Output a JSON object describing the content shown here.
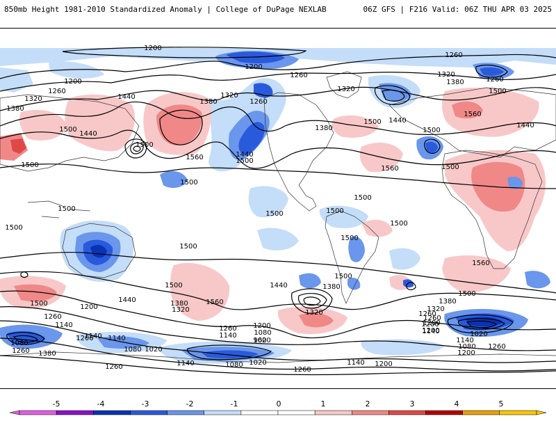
{
  "header": {
    "left_title": "850mb Height 1981-2010 Standardized Anomaly | College of DuPage NEXLAB",
    "right_title": "06Z GFS | F216 Valid: 06Z THU APR 03 2025"
  },
  "contour_labels": [
    {
      "text": "1200"
    },
    {
      "text": "1200"
    },
    {
      "text": "1260"
    },
    {
      "text": "1200"
    },
    {
      "text": "1260"
    },
    {
      "text": "1320"
    },
    {
      "text": "1380"
    },
    {
      "text": "1440"
    },
    {
      "text": "1320"
    },
    {
      "text": "1380"
    },
    {
      "text": "1260"
    },
    {
      "text": "1320"
    },
    {
      "text": "1380"
    },
    {
      "text": "1260"
    },
    {
      "text": "1320"
    },
    {
      "text": "1500"
    },
    {
      "text": "1260"
    },
    {
      "text": "1500"
    },
    {
      "text": "1440"
    },
    {
      "text": "1560"
    },
    {
      "text": "1500"
    },
    {
      "text": "1440"
    },
    {
      "text": "1380"
    },
    {
      "text": "1500"
    },
    {
      "text": "1560"
    },
    {
      "text": "1500"
    },
    {
      "text": "1500"
    },
    {
      "text": "1440"
    },
    {
      "text": "1500"
    },
    {
      "text": "1560"
    },
    {
      "text": "1500"
    },
    {
      "text": "1440"
    },
    {
      "text": "1500"
    },
    {
      "text": "1500"
    },
    {
      "text": "1500"
    },
    {
      "text": "1500"
    },
    {
      "text": "1500"
    },
    {
      "text": "1500"
    },
    {
      "text": "1500"
    },
    {
      "text": "1500"
    },
    {
      "text": "1500"
    },
    {
      "text": "1500"
    },
    {
      "text": "1560"
    },
    {
      "text": "1500"
    },
    {
      "text": "1500"
    },
    {
      "text": "1440"
    },
    {
      "text": "1380"
    },
    {
      "text": "1560"
    },
    {
      "text": "1440"
    },
    {
      "text": "1500"
    },
    {
      "text": "1380"
    },
    {
      "text": "1320"
    },
    {
      "text": "1260"
    },
    {
      "text": "1200"
    },
    {
      "text": "1140"
    },
    {
      "text": "1200"
    },
    {
      "text": "1140"
    },
    {
      "text": "1380"
    },
    {
      "text": "1320"
    },
    {
      "text": "1320"
    },
    {
      "text": "1260"
    },
    {
      "text": "1200"
    },
    {
      "text": "1140"
    },
    {
      "text": "1080"
    },
    {
      "text": "1020"
    },
    {
      "text": "960"
    },
    {
      "text": "1200"
    },
    {
      "text": "1140"
    },
    {
      "text": "1080"
    },
    {
      "text": "1260"
    },
    {
      "text": "1380"
    },
    {
      "text": "1080"
    },
    {
      "text": "1020"
    },
    {
      "text": "1260"
    },
    {
      "text": "1140"
    },
    {
      "text": "1080"
    },
    {
      "text": "1020"
    },
    {
      "text": "1140"
    },
    {
      "text": "1200"
    },
    {
      "text": "1260"
    },
    {
      "text": "1020"
    },
    {
      "text": "1140"
    },
    {
      "text": "1080"
    },
    {
      "text": "1200"
    },
    {
      "text": "1260"
    },
    {
      "text": "1260"
    },
    {
      "text": "1200"
    },
    {
      "text": "1140"
    },
    {
      "text": "1260"
    },
    {
      "text": "1200"
    }
  ],
  "colorbar": {
    "ticks": [
      "-5",
      "-4",
      "-3",
      "-2",
      "-1",
      "0",
      "1",
      "2",
      "3",
      "4",
      "5"
    ],
    "colors": [
      "#e060e0",
      "#8a10c8",
      "#0a32b4",
      "#2a5adc",
      "#6a96ec",
      "#c4ddf8",
      "#ffffff",
      "#ffffff",
      "#f8c8c8",
      "#f08888",
      "#e04848",
      "#b40000",
      "#e8a000",
      "#f8c800"
    ]
  },
  "legend": {
    "units": "standardized anomaly",
    "min": -5,
    "max": 5
  }
}
